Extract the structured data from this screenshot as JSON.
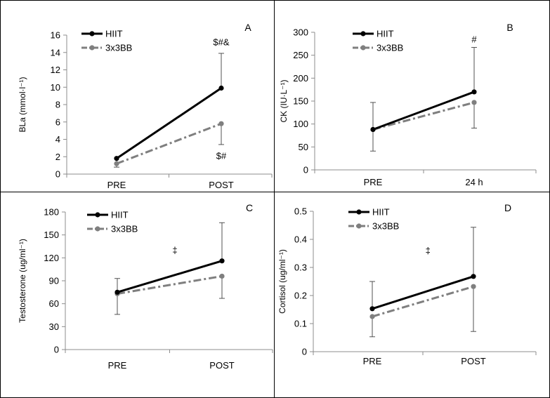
{
  "chart_data": [
    {
      "type": "line",
      "panel_label": "A",
      "ylabel": "BLa (mmol·l⁻¹)",
      "ylim": [
        0,
        16
      ],
      "yticks": [
        0,
        2,
        4,
        6,
        8,
        10,
        12,
        14,
        16
      ],
      "categories": [
        "PRE",
        "POST"
      ],
      "series": [
        {
          "name": "HIIT",
          "values": [
            1.8,
            9.9
          ],
          "err_upper": [
            0,
            4.0
          ],
          "err_lower": [
            0,
            0
          ]
        },
        {
          "name": "3x3BB",
          "values": [
            1.2,
            5.8
          ],
          "err_upper": [
            0,
            0
          ],
          "err_lower": [
            0.4,
            2.4
          ]
        }
      ],
      "annotations": [
        {
          "text": "$#&",
          "category": "POST",
          "y": 15.2
        },
        {
          "text": "$#",
          "category": "POST",
          "y": 2.1
        }
      ]
    },
    {
      "type": "line",
      "panel_label": "B",
      "ylabel": "CK (IU·L⁻¹)",
      "ylim": [
        0,
        300
      ],
      "yticks": [
        0,
        50,
        100,
        150,
        200,
        250,
        300
      ],
      "categories": [
        "PRE",
        "24 h"
      ],
      "series": [
        {
          "name": "HIIT",
          "values": [
            88,
            170
          ],
          "err_upper": [
            59,
            97
          ],
          "err_lower": [
            0,
            0
          ]
        },
        {
          "name": "3x3BB",
          "values": [
            88,
            147
          ],
          "err_upper": [
            0,
            0
          ],
          "err_lower": [
            47,
            56
          ]
        }
      ],
      "annotations": [
        {
          "text": "#",
          "category": "24 h",
          "y": 285
        }
      ]
    },
    {
      "type": "line",
      "panel_label": "C",
      "ylabel": "Testosterone (ug/ml⁻¹)",
      "ylim": [
        0,
        180
      ],
      "yticks": [
        0,
        30,
        60,
        90,
        120,
        150,
        180
      ],
      "categories": [
        "PRE",
        "POST"
      ],
      "series": [
        {
          "name": "HIIT",
          "values": [
            75,
            116
          ],
          "err_upper": [
            18,
            50
          ],
          "err_lower": [
            0,
            0
          ]
        },
        {
          "name": "3x3BB",
          "values": [
            73,
            96
          ],
          "err_upper": [
            0,
            0
          ],
          "err_lower": [
            27,
            29
          ]
        }
      ],
      "annotations": [
        {
          "text": "‡",
          "category_position": 0.55,
          "y": 130
        }
      ]
    },
    {
      "type": "line",
      "panel_label": "D",
      "ylabel": "Cortisol (ug/ml⁻¹)",
      "ylim": [
        0,
        0.5
      ],
      "yticks": [
        0,
        0.1,
        0.2,
        0.3,
        0.4,
        0.5
      ],
      "categories": [
        "PRE",
        "POST"
      ],
      "series": [
        {
          "name": "HIIT",
          "values": [
            0.153,
            0.268
          ],
          "err_upper": [
            0.097,
            0.175
          ],
          "err_lower": [
            0,
            0
          ]
        },
        {
          "name": "3x3BB",
          "values": [
            0.125,
            0.232
          ],
          "err_upper": [
            0,
            0
          ],
          "err_lower": [
            0.072,
            0.16
          ]
        }
      ],
      "annotations": [
        {
          "text": "‡",
          "category_position": 0.55,
          "y": 0.36
        }
      ]
    }
  ],
  "styles": {
    "hiit_color": "#000000",
    "bb_color": "#7f7f7f",
    "frame_color": "#000000",
    "axis_color": "#8c8c8c"
  }
}
